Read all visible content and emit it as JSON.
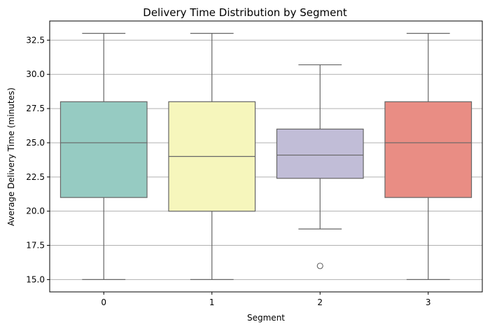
{
  "chart_data": {
    "type": "box",
    "title": "Delivery Time Distribution by Segment",
    "xlabel": "Segment",
    "ylabel": "Average Delivery Time (minutes)",
    "categories": [
      "0",
      "1",
      "2",
      "3"
    ],
    "ylim": [
      14.1,
      33.9
    ],
    "yticks": [
      15.0,
      17.5,
      20.0,
      22.5,
      25.0,
      27.5,
      30.0,
      32.5
    ],
    "ytick_labels": [
      "15.0",
      "17.5",
      "20.0",
      "22.5",
      "25.0",
      "27.5",
      "30.0",
      "32.5"
    ],
    "grid": {
      "y": true,
      "x": false
    },
    "boxes": [
      {
        "category": "0",
        "whisker_low": 15.0,
        "q1": 21.0,
        "median": 25.0,
        "q3": 28.0,
        "whisker_high": 33.0,
        "outliers": [],
        "color": "#96cbc2"
      },
      {
        "category": "1",
        "whisker_low": 15.0,
        "q1": 20.0,
        "median": 24.0,
        "q3": 28.0,
        "whisker_high": 33.0,
        "outliers": [],
        "color": "#f6f6bc"
      },
      {
        "category": "2",
        "whisker_low": 18.7,
        "q1": 22.4,
        "median": 24.1,
        "q3": 26.0,
        "whisker_high": 30.7,
        "outliers": [
          16.0
        ],
        "color": "#c1bdd7"
      },
      {
        "category": "3",
        "whisker_low": 15.0,
        "q1": 21.0,
        "median": 25.0,
        "q3": 28.0,
        "whisker_high": 33.0,
        "outliers": [],
        "color": "#e98d84"
      }
    ]
  }
}
